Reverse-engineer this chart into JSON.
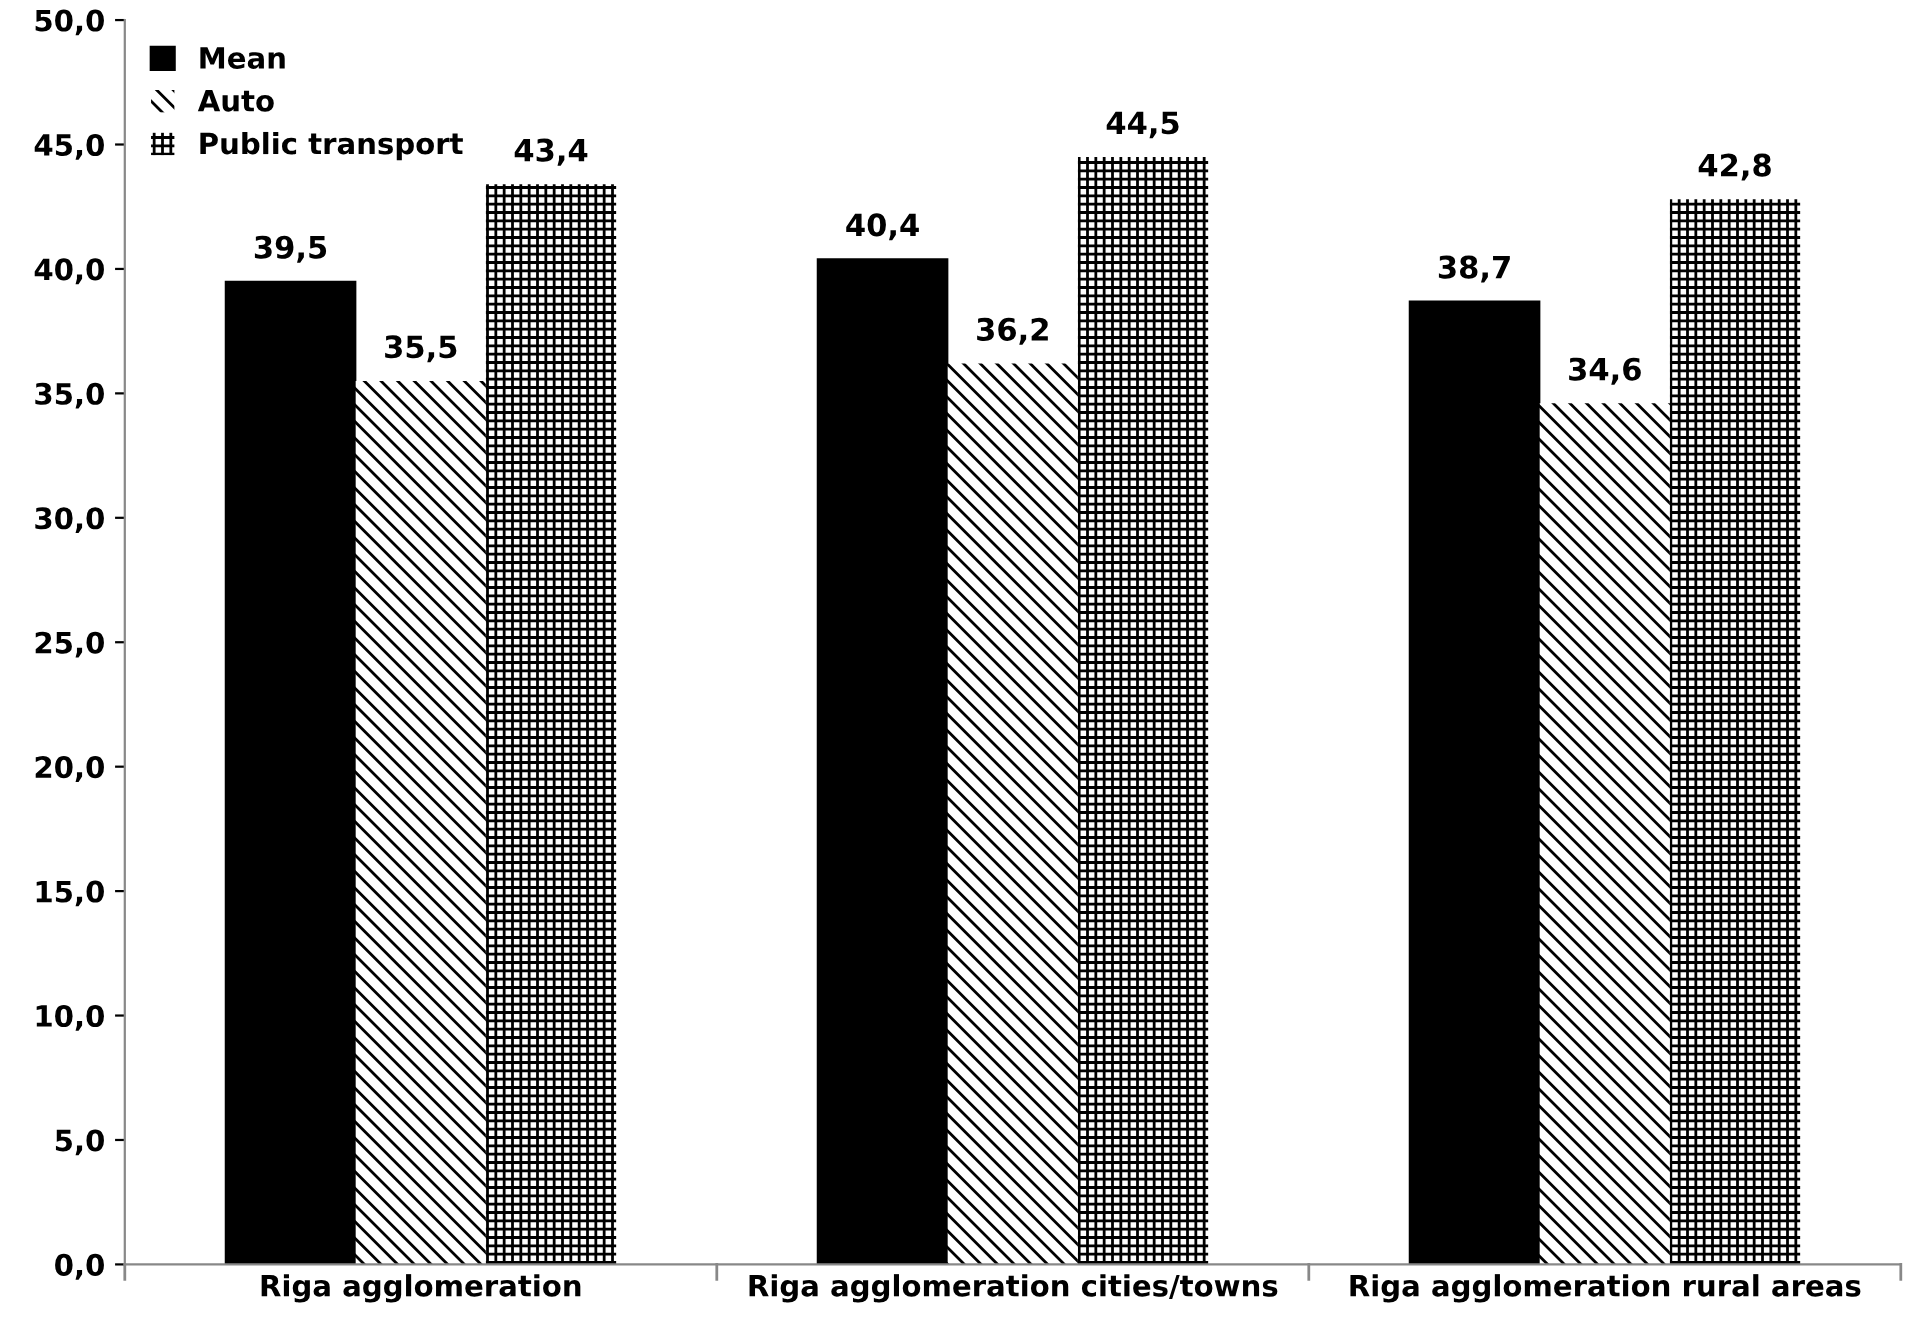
{
  "chart_data": {
    "type": "bar",
    "categories": [
      "Riga agglomeration",
      "Riga agglomeration cities/towns",
      "Riga agglomeration rural areas"
    ],
    "series": [
      {
        "name": "Mean",
        "color": "#000000",
        "values": [
          39.5,
          40.4,
          38.7
        ],
        "value_labels": [
          "39,5",
          "40,4",
          "38,7"
        ]
      },
      {
        "name": "Auto",
        "color": "#000000",
        "values": [
          35.5,
          36.2,
          34.6
        ],
        "value_labels": [
          "35,5",
          "36,2",
          "34,6"
        ]
      },
      {
        "name": "Public transport",
        "color": "#000000",
        "values": [
          43.4,
          44.5,
          42.8
        ],
        "value_labels": [
          "43,4",
          "44,5",
          "42,8"
        ]
      }
    ],
    "ylim": [
      0,
      50
    ],
    "yticks": [
      {
        "value": 0,
        "label": "0,0"
      },
      {
        "value": 5,
        "label": "5,0"
      },
      {
        "value": 10,
        "label": "10,0"
      },
      {
        "value": 15,
        "label": "15,0"
      },
      {
        "value": 20,
        "label": "20,0"
      },
      {
        "value": 25,
        "label": "25,0"
      },
      {
        "value": 30,
        "label": "30,0"
      },
      {
        "value": 35,
        "label": "35,0"
      },
      {
        "value": 40,
        "label": "40,0"
      },
      {
        "value": 45,
        "label": "45,0"
      },
      {
        "value": 50,
        "label": "50,0"
      }
    ],
    "grid": false,
    "legend": "top left"
  }
}
